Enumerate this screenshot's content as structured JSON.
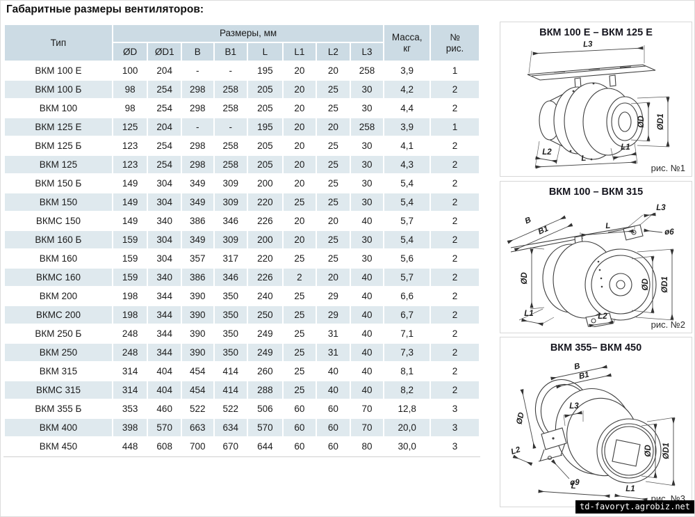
{
  "page": {
    "title": "Габаритные размеры вентиляторов:"
  },
  "table": {
    "headers": {
      "type": "Тип",
      "sizes_group": "Размеры, мм",
      "size_cols": [
        "ØD",
        "ØD1",
        "B",
        "B1",
        "L",
        "L1",
        "L2",
        "L3"
      ],
      "mass": "Масса,\nкг",
      "fig": "№\nрис."
    },
    "rows": [
      [
        "ВКМ 100 Е",
        "100",
        "204",
        "-",
        "-",
        "195",
        "20",
        "20",
        "258",
        "3,9",
        "1"
      ],
      [
        "ВКМ 100 Б",
        "98",
        "254",
        "298",
        "258",
        "205",
        "20",
        "25",
        "30",
        "4,2",
        "2"
      ],
      [
        "ВКМ 100",
        "98",
        "254",
        "298",
        "258",
        "205",
        "20",
        "25",
        "30",
        "4,4",
        "2"
      ],
      [
        "ВКМ 125 Е",
        "125",
        "204",
        "-",
        "-",
        "195",
        "20",
        "20",
        "258",
        "3,9",
        "1"
      ],
      [
        "ВКМ 125 Б",
        "123",
        "254",
        "298",
        "258",
        "205",
        "20",
        "25",
        "30",
        "4,1",
        "2"
      ],
      [
        "ВКМ 125",
        "123",
        "254",
        "298",
        "258",
        "205",
        "20",
        "25",
        "30",
        "4,3",
        "2"
      ],
      [
        "ВКМ 150 Б",
        "149",
        "304",
        "349",
        "309",
        "200",
        "20",
        "25",
        "30",
        "5,4",
        "2"
      ],
      [
        "ВКМ 150",
        "149",
        "304",
        "349",
        "309",
        "220",
        "25",
        "25",
        "30",
        "5,4",
        "2"
      ],
      [
        "ВКМС 150",
        "149",
        "340",
        "386",
        "346",
        "226",
        "20",
        "20",
        "40",
        "5,7",
        "2"
      ],
      [
        "ВКМ 160 Б",
        "159",
        "304",
        "349",
        "309",
        "200",
        "20",
        "25",
        "30",
        "5,4",
        "2"
      ],
      [
        "ВКМ 160",
        "159",
        "304",
        "357",
        "317",
        "220",
        "25",
        "25",
        "30",
        "5,6",
        "2"
      ],
      [
        "ВКМС 160",
        "159",
        "340",
        "386",
        "346",
        "226",
        "2",
        "20",
        "40",
        "5,7",
        "2"
      ],
      [
        "ВКМ 200",
        "198",
        "344",
        "390",
        "350",
        "240",
        "25",
        "29",
        "40",
        "6,6",
        "2"
      ],
      [
        "ВКМС 200",
        "198",
        "344",
        "390",
        "350",
        "250",
        "25",
        "29",
        "40",
        "6,7",
        "2"
      ],
      [
        "ВКМ 250 Б",
        "248",
        "344",
        "390",
        "350",
        "249",
        "25",
        "31",
        "40",
        "7,1",
        "2"
      ],
      [
        "ВКМ 250",
        "248",
        "344",
        "390",
        "350",
        "249",
        "25",
        "31",
        "40",
        "7,3",
        "2"
      ],
      [
        "ВКМ 315",
        "314",
        "404",
        "454",
        "414",
        "260",
        "25",
        "40",
        "40",
        "8,1",
        "2"
      ],
      [
        "ВКМС 315",
        "314",
        "404",
        "454",
        "414",
        "288",
        "25",
        "40",
        "40",
        "8,2",
        "2"
      ],
      [
        "ВКМ 355 Б",
        "353",
        "460",
        "522",
        "522",
        "506",
        "60",
        "60",
        "70",
        "12,8",
        "3"
      ],
      [
        "ВКМ 400",
        "398",
        "570",
        "663",
        "634",
        "570",
        "60",
        "60",
        "70",
        "20,0",
        "3"
      ],
      [
        "ВКМ 450",
        "448",
        "608",
        "700",
        "670",
        "644",
        "60",
        "60",
        "80",
        "30,0",
        "3"
      ]
    ],
    "colors": {
      "header_bg": "#ccdbe4",
      "stripe_bg": "#dfe9ee",
      "text": "#1a1a1a"
    }
  },
  "figures": [
    {
      "title": "ВКМ 100 Е – ВКМ 125 Е",
      "caption": "рис. №1",
      "labels": {
        "l3": "L3",
        "d": "ØD",
        "d1": "ØD1",
        "l2": "L2",
        "l1": "L1",
        "l": "L"
      }
    },
    {
      "title": "ВКМ 100 – ВКМ 315",
      "caption": "рис. №2",
      "labels": {
        "b": "B",
        "b1": "B1",
        "l": "L",
        "l3": "L3",
        "hole": "ø6",
        "d_left": "ØD",
        "d_right": "ØD",
        "d1": "ØD1",
        "l1": "L1",
        "l2": "L2"
      }
    },
    {
      "title": "ВКМ 355– ВКМ 450",
      "caption": "рис. №3",
      "labels": {
        "b": "B",
        "b1": "B1",
        "d_left": "ØD",
        "l3": "L3",
        "l2": "L2",
        "hole": "ø9",
        "l": "L",
        "l1": "L1",
        "d_right": "ØD",
        "d1": "ØD1"
      }
    }
  ],
  "watermark": "td-favoryt.agrobiz.net"
}
